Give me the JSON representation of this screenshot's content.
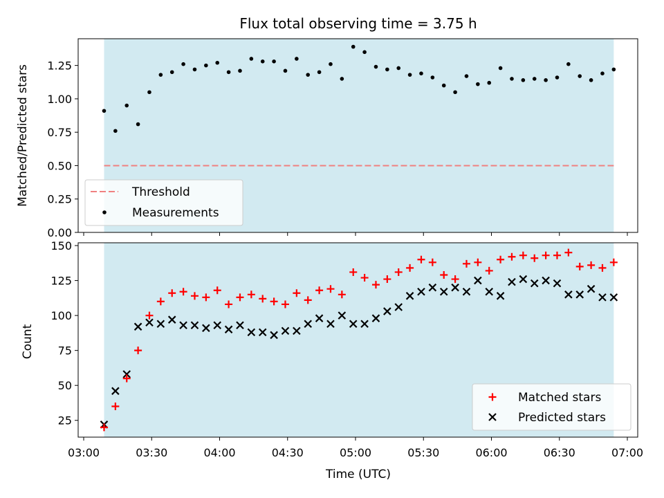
{
  "title": "Flux total observing time = 3.75 h",
  "chart_data": [
    {
      "type": "scatter",
      "title": "Flux total observing time = 3.75 h",
      "xlabel": "",
      "ylabel": "Matched/Predicted stars",
      "ylim": [
        0,
        1.45
      ],
      "xlim": [
        "03:00",
        "07:00"
      ],
      "yticks": [
        "0.00",
        "0.25",
        "0.50",
        "0.75",
        "1.00",
        "1.25"
      ],
      "shaded_span": [
        "03:09",
        "06:54"
      ],
      "shade_color": "#add8e6",
      "threshold": {
        "name": "Threshold",
        "value": 0.5,
        "color": "#f08080"
      },
      "legend_position": "lower-left",
      "series": [
        {
          "name": "Measurements",
          "color": "#000000",
          "x": [
            "03:09",
            "03:14",
            "03:19",
            "03:24",
            "03:29",
            "03:34",
            "03:39",
            "03:44",
            "03:49",
            "03:54",
            "03:59",
            "04:04",
            "04:09",
            "04:14",
            "04:19",
            "04:24",
            "04:29",
            "04:34",
            "04:39",
            "04:44",
            "04:49",
            "04:54",
            "04:59",
            "05:04",
            "05:09",
            "05:14",
            "05:19",
            "05:24",
            "05:29",
            "05:34",
            "05:39",
            "05:44",
            "05:49",
            "05:54",
            "05:59",
            "06:04",
            "06:09",
            "06:14",
            "06:19",
            "06:24",
            "06:29",
            "06:34",
            "06:39",
            "06:44",
            "06:49",
            "06:54"
          ],
          "y": [
            0.91,
            0.76,
            0.95,
            0.81,
            1.05,
            1.18,
            1.2,
            1.26,
            1.22,
            1.25,
            1.27,
            1.2,
            1.21,
            1.3,
            1.28,
            1.28,
            1.21,
            1.3,
            1.18,
            1.2,
            1.26,
            1.15,
            1.39,
            1.35,
            1.24,
            1.22,
            1.23,
            1.18,
            1.19,
            1.16,
            1.1,
            1.05,
            1.17,
            1.11,
            1.12,
            1.23,
            1.15,
            1.14,
            1.15,
            1.14,
            1.16,
            1.26,
            1.17,
            1.14,
            1.19,
            1.22
          ]
        }
      ]
    },
    {
      "type": "scatter",
      "xlabel": "Time (UTC)",
      "ylabel": "Count",
      "ylim": [
        13,
        152
      ],
      "xlim": [
        "03:00",
        "07:00"
      ],
      "xticks": [
        "03:00",
        "03:30",
        "04:00",
        "04:30",
        "05:00",
        "05:30",
        "06:00",
        "06:30",
        "07:00"
      ],
      "yticks": [
        "25",
        "50",
        "75",
        "100",
        "125",
        "150"
      ],
      "shaded_span": [
        "03:09",
        "06:54"
      ],
      "shade_color": "#add8e6",
      "legend_position": "lower-right",
      "x": [
        "03:09",
        "03:14",
        "03:19",
        "03:24",
        "03:29",
        "03:34",
        "03:39",
        "03:44",
        "03:49",
        "03:54",
        "03:59",
        "04:04",
        "04:09",
        "04:14",
        "04:19",
        "04:24",
        "04:29",
        "04:34",
        "04:39",
        "04:44",
        "04:49",
        "04:54",
        "04:59",
        "05:04",
        "05:09",
        "05:14",
        "05:19",
        "05:24",
        "05:29",
        "05:34",
        "05:39",
        "05:44",
        "05:49",
        "05:54",
        "05:59",
        "06:04",
        "06:09",
        "06:14",
        "06:19",
        "06:24",
        "06:29",
        "06:34",
        "06:39",
        "06:44",
        "06:49",
        "06:54"
      ],
      "series": [
        {
          "name": "Matched stars",
          "marker": "plus",
          "color": "#ff0000",
          "values": [
            20,
            35,
            55,
            75,
            100,
            110,
            116,
            117,
            114,
            113,
            118,
            108,
            113,
            115,
            112,
            110,
            108,
            116,
            111,
            118,
            119,
            115,
            131,
            127,
            122,
            126,
            131,
            134,
            140,
            138,
            129,
            126,
            137,
            138,
            132,
            140,
            142,
            143,
            141,
            143,
            143,
            145,
            135,
            136,
            134,
            138
          ]
        },
        {
          "name": "Predicted stars",
          "marker": "x",
          "color": "#000000",
          "values": [
            22,
            46,
            58,
            92,
            95,
            94,
            97,
            93,
            93,
            91,
            93,
            90,
            93,
            88,
            88,
            86,
            89,
            89,
            94,
            98,
            94,
            100,
            94,
            94,
            98,
            103,
            106,
            114,
            117,
            120,
            117,
            120,
            117,
            125,
            117,
            114,
            124,
            126,
            123,
            125,
            123,
            115,
            115,
            119,
            113,
            113
          ]
        }
      ]
    }
  ]
}
